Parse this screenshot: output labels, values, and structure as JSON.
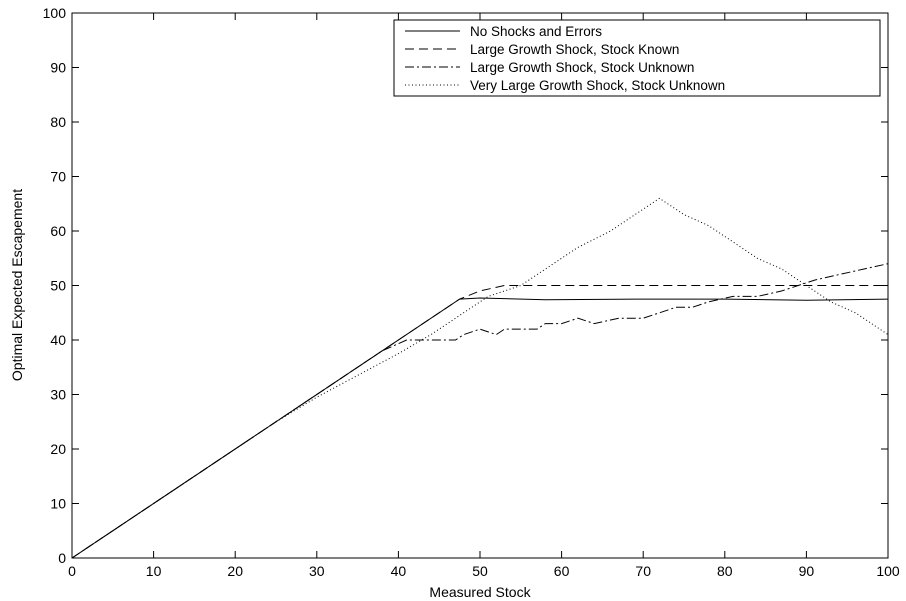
{
  "chart_data": {
    "type": "line",
    "xlabel": "Measured Stock",
    "ylabel": "Optimal Expected Escapement",
    "xlim": [
      0,
      100
    ],
    "ylim": [
      0,
      100
    ],
    "xticks": [
      0,
      10,
      20,
      30,
      40,
      50,
      60,
      70,
      80,
      90,
      100
    ],
    "yticks": [
      0,
      10,
      20,
      30,
      40,
      50,
      60,
      70,
      80,
      90,
      100
    ],
    "grid": false,
    "legend_position": "top-right",
    "series": [
      {
        "name": "No Shocks and Errors",
        "line_style": "solid",
        "points": [
          [
            0,
            0
          ],
          [
            47.5,
            47.5
          ],
          [
            50,
            47.7
          ],
          [
            58,
            47.4
          ],
          [
            70,
            47.5
          ],
          [
            80,
            47.5
          ],
          [
            90,
            47.3
          ],
          [
            100,
            47.5
          ]
        ]
      },
      {
        "name": "Large Growth Shock, Stock Known",
        "line_style": "dashed",
        "points": [
          [
            0,
            0
          ],
          [
            47.5,
            47.5
          ],
          [
            50,
            49
          ],
          [
            53,
            50
          ],
          [
            60,
            50
          ],
          [
            70,
            50
          ],
          [
            80,
            50
          ],
          [
            90,
            50
          ],
          [
            100,
            50
          ]
        ]
      },
      {
        "name": "Large Growth Shock, Stock Unknown",
        "line_style": "dashdot",
        "points": [
          [
            0,
            0
          ],
          [
            38,
            38
          ],
          [
            41,
            40
          ],
          [
            43,
            40
          ],
          [
            45,
            40
          ],
          [
            47,
            40
          ],
          [
            48,
            41
          ],
          [
            50,
            42
          ],
          [
            52,
            41
          ],
          [
            53,
            42
          ],
          [
            57,
            42
          ],
          [
            58,
            43
          ],
          [
            60,
            43
          ],
          [
            62,
            44
          ],
          [
            64,
            43
          ],
          [
            67,
            44
          ],
          [
            70,
            44
          ],
          [
            72,
            45
          ],
          [
            74,
            46
          ],
          [
            76,
            46
          ],
          [
            78,
            47
          ],
          [
            81,
            48
          ],
          [
            84,
            48
          ],
          [
            87,
            49
          ],
          [
            89,
            50
          ],
          [
            91,
            51
          ],
          [
            94,
            52
          ],
          [
            97,
            53
          ],
          [
            100,
            54
          ]
        ]
      },
      {
        "name": "Very Large Growth Shock, Stock Unknown",
        "line_style": "dotted",
        "points": [
          [
            0,
            0
          ],
          [
            25,
            25
          ],
          [
            30,
            29.5
          ],
          [
            35,
            33.5
          ],
          [
            40,
            37.5
          ],
          [
            44,
            41
          ],
          [
            47,
            44
          ],
          [
            51,
            48
          ],
          [
            55,
            50
          ],
          [
            58,
            53
          ],
          [
            62,
            57
          ],
          [
            66,
            60
          ],
          [
            69,
            63
          ],
          [
            72,
            66
          ],
          [
            75,
            63
          ],
          [
            78,
            61
          ],
          [
            81,
            58
          ],
          [
            84,
            55
          ],
          [
            87,
            53
          ],
          [
            90,
            50
          ],
          [
            93,
            47
          ],
          [
            96,
            45
          ],
          [
            99,
            42
          ],
          [
            100,
            41
          ]
        ]
      }
    ]
  }
}
